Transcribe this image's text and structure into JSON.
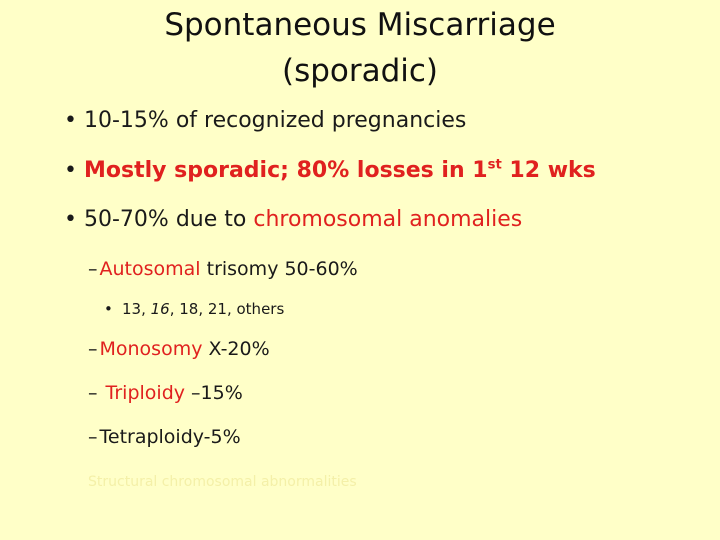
{
  "slide": {
    "title_line1": "Spontaneous Miscarriage",
    "title_line2": "(sporadic)",
    "bullets": [
      {
        "marker": "•",
        "text": "10-15% of recognized pregnancies"
      },
      {
        "marker": "•",
        "text_a": "Mostly sporadic; 80% losses in 1",
        "sup": "st",
        "text_b": " 12 wks"
      },
      {
        "marker": "•",
        "text_a": "50-70% due to ",
        "text_b": "chromosomal anomalies"
      }
    ],
    "sub_items": [
      {
        "marker": "–",
        "text_a": "Autosomal",
        "text_b": " trisomy 50-60%"
      },
      {
        "marker": "–",
        "text_a": "Monosomy",
        "text_b": " X-20%"
      },
      {
        "marker": "– ",
        "text_a": "Triploidy",
        "text_b": " –15%"
      },
      {
        "marker": "–",
        "text_a": "Tetraploidy-5%"
      }
    ],
    "sub_sub": {
      "marker": "•",
      "text_a": "13, ",
      "text_b": "16",
      "text_c": ", 18, 21, others"
    },
    "faint_text": "Structural chromosomal abnormalities"
  }
}
